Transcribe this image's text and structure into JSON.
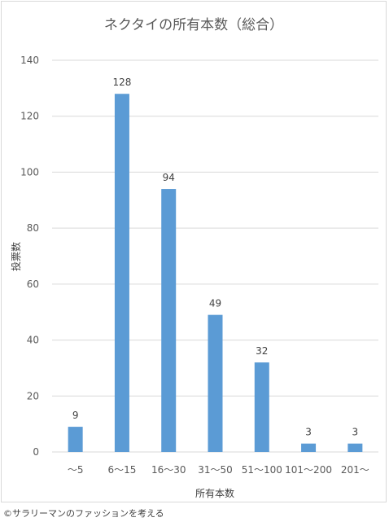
{
  "chart_data": {
    "type": "bar",
    "title": "ネクタイの所有本数（総合）",
    "xlabel": "所有本数",
    "ylabel": "投票数",
    "categories": [
      "～5",
      "6～15",
      "16～30",
      "31～50",
      "51～100",
      "101～200",
      "201～"
    ],
    "values": [
      9,
      128,
      94,
      49,
      32,
      3,
      3
    ],
    "ylim": [
      0,
      140
    ],
    "yticks": [
      0,
      20,
      40,
      60,
      80,
      100,
      120,
      140
    ],
    "grid": true,
    "legend": "none",
    "bar_color": "#5b9bd5"
  },
  "credit": "©サラリーマンのファッションを考える"
}
